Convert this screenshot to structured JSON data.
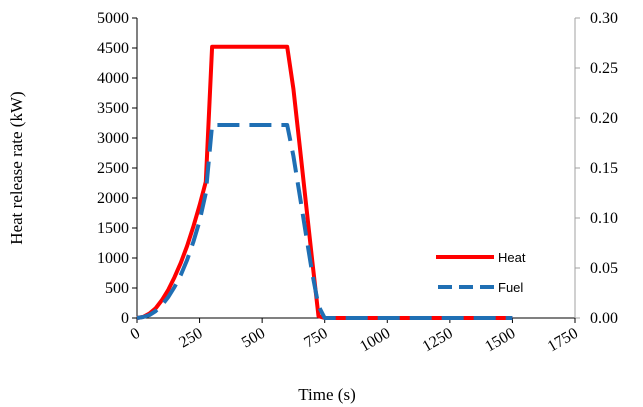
{
  "chart_data": {
    "type": "line",
    "title": "",
    "xlabel": "Time (s)",
    "ylabel": "Heat release rate (kW)",
    "y2label": "",
    "xlim": [
      0,
      1750
    ],
    "ylim": [
      0,
      5000
    ],
    "y2lim": [
      0,
      0.3
    ],
    "xticks": [
      "0",
      "250",
      "500",
      "750",
      "1000",
      "1250",
      "1500",
      "1750"
    ],
    "yticks": [
      "0",
      "500",
      "1000",
      "1500",
      "2000",
      "2500",
      "3000",
      "3500",
      "4000",
      "4500",
      "5000"
    ],
    "y2ticks": [
      "0.00",
      "0.05",
      "0.10",
      "0.15",
      "0.20",
      "0.25",
      "0.30"
    ],
    "grid": false,
    "legend_position": "bottom-right",
    "series": [
      {
        "name": "Heat",
        "axis": "left",
        "color": "#ff0000",
        "style": "solid",
        "x": [
          0,
          25,
          50,
          75,
          100,
          125,
          150,
          175,
          200,
          225,
          250,
          275,
          300,
          600,
          625,
          650,
          675,
          700,
          725,
          750,
          800,
          900,
          1000,
          1100,
          1200,
          1300,
          1400,
          1500
        ],
        "y": [
          0,
          18,
          75,
          165,
          300,
          470,
          680,
          920,
          1200,
          1520,
          1880,
          2270,
          4520,
          4520,
          3820,
          2870,
          1920,
          960,
          30,
          0,
          0,
          0,
          0,
          0,
          0,
          0,
          0,
          0
        ]
      },
      {
        "name": "Fuel",
        "axis": "right",
        "color": "#1f6fb4",
        "style": "dashed",
        "x": [
          0,
          25,
          50,
          75,
          100,
          125,
          150,
          175,
          200,
          225,
          250,
          275,
          300,
          340,
          600,
          625,
          650,
          675,
          700,
          725,
          750,
          900,
          1100,
          1300,
          1500
        ],
        "y": [
          0,
          0.001,
          0.003,
          0.007,
          0.013,
          0.021,
          0.031,
          0.043,
          0.058,
          0.076,
          0.097,
          0.125,
          0.193,
          0.193,
          0.193,
          0.162,
          0.123,
          0.084,
          0.045,
          0.012,
          0,
          0,
          0,
          0,
          0
        ]
      }
    ],
    "colors": {
      "axis": "#000000",
      "right_axis": "#a0a0a0"
    }
  }
}
